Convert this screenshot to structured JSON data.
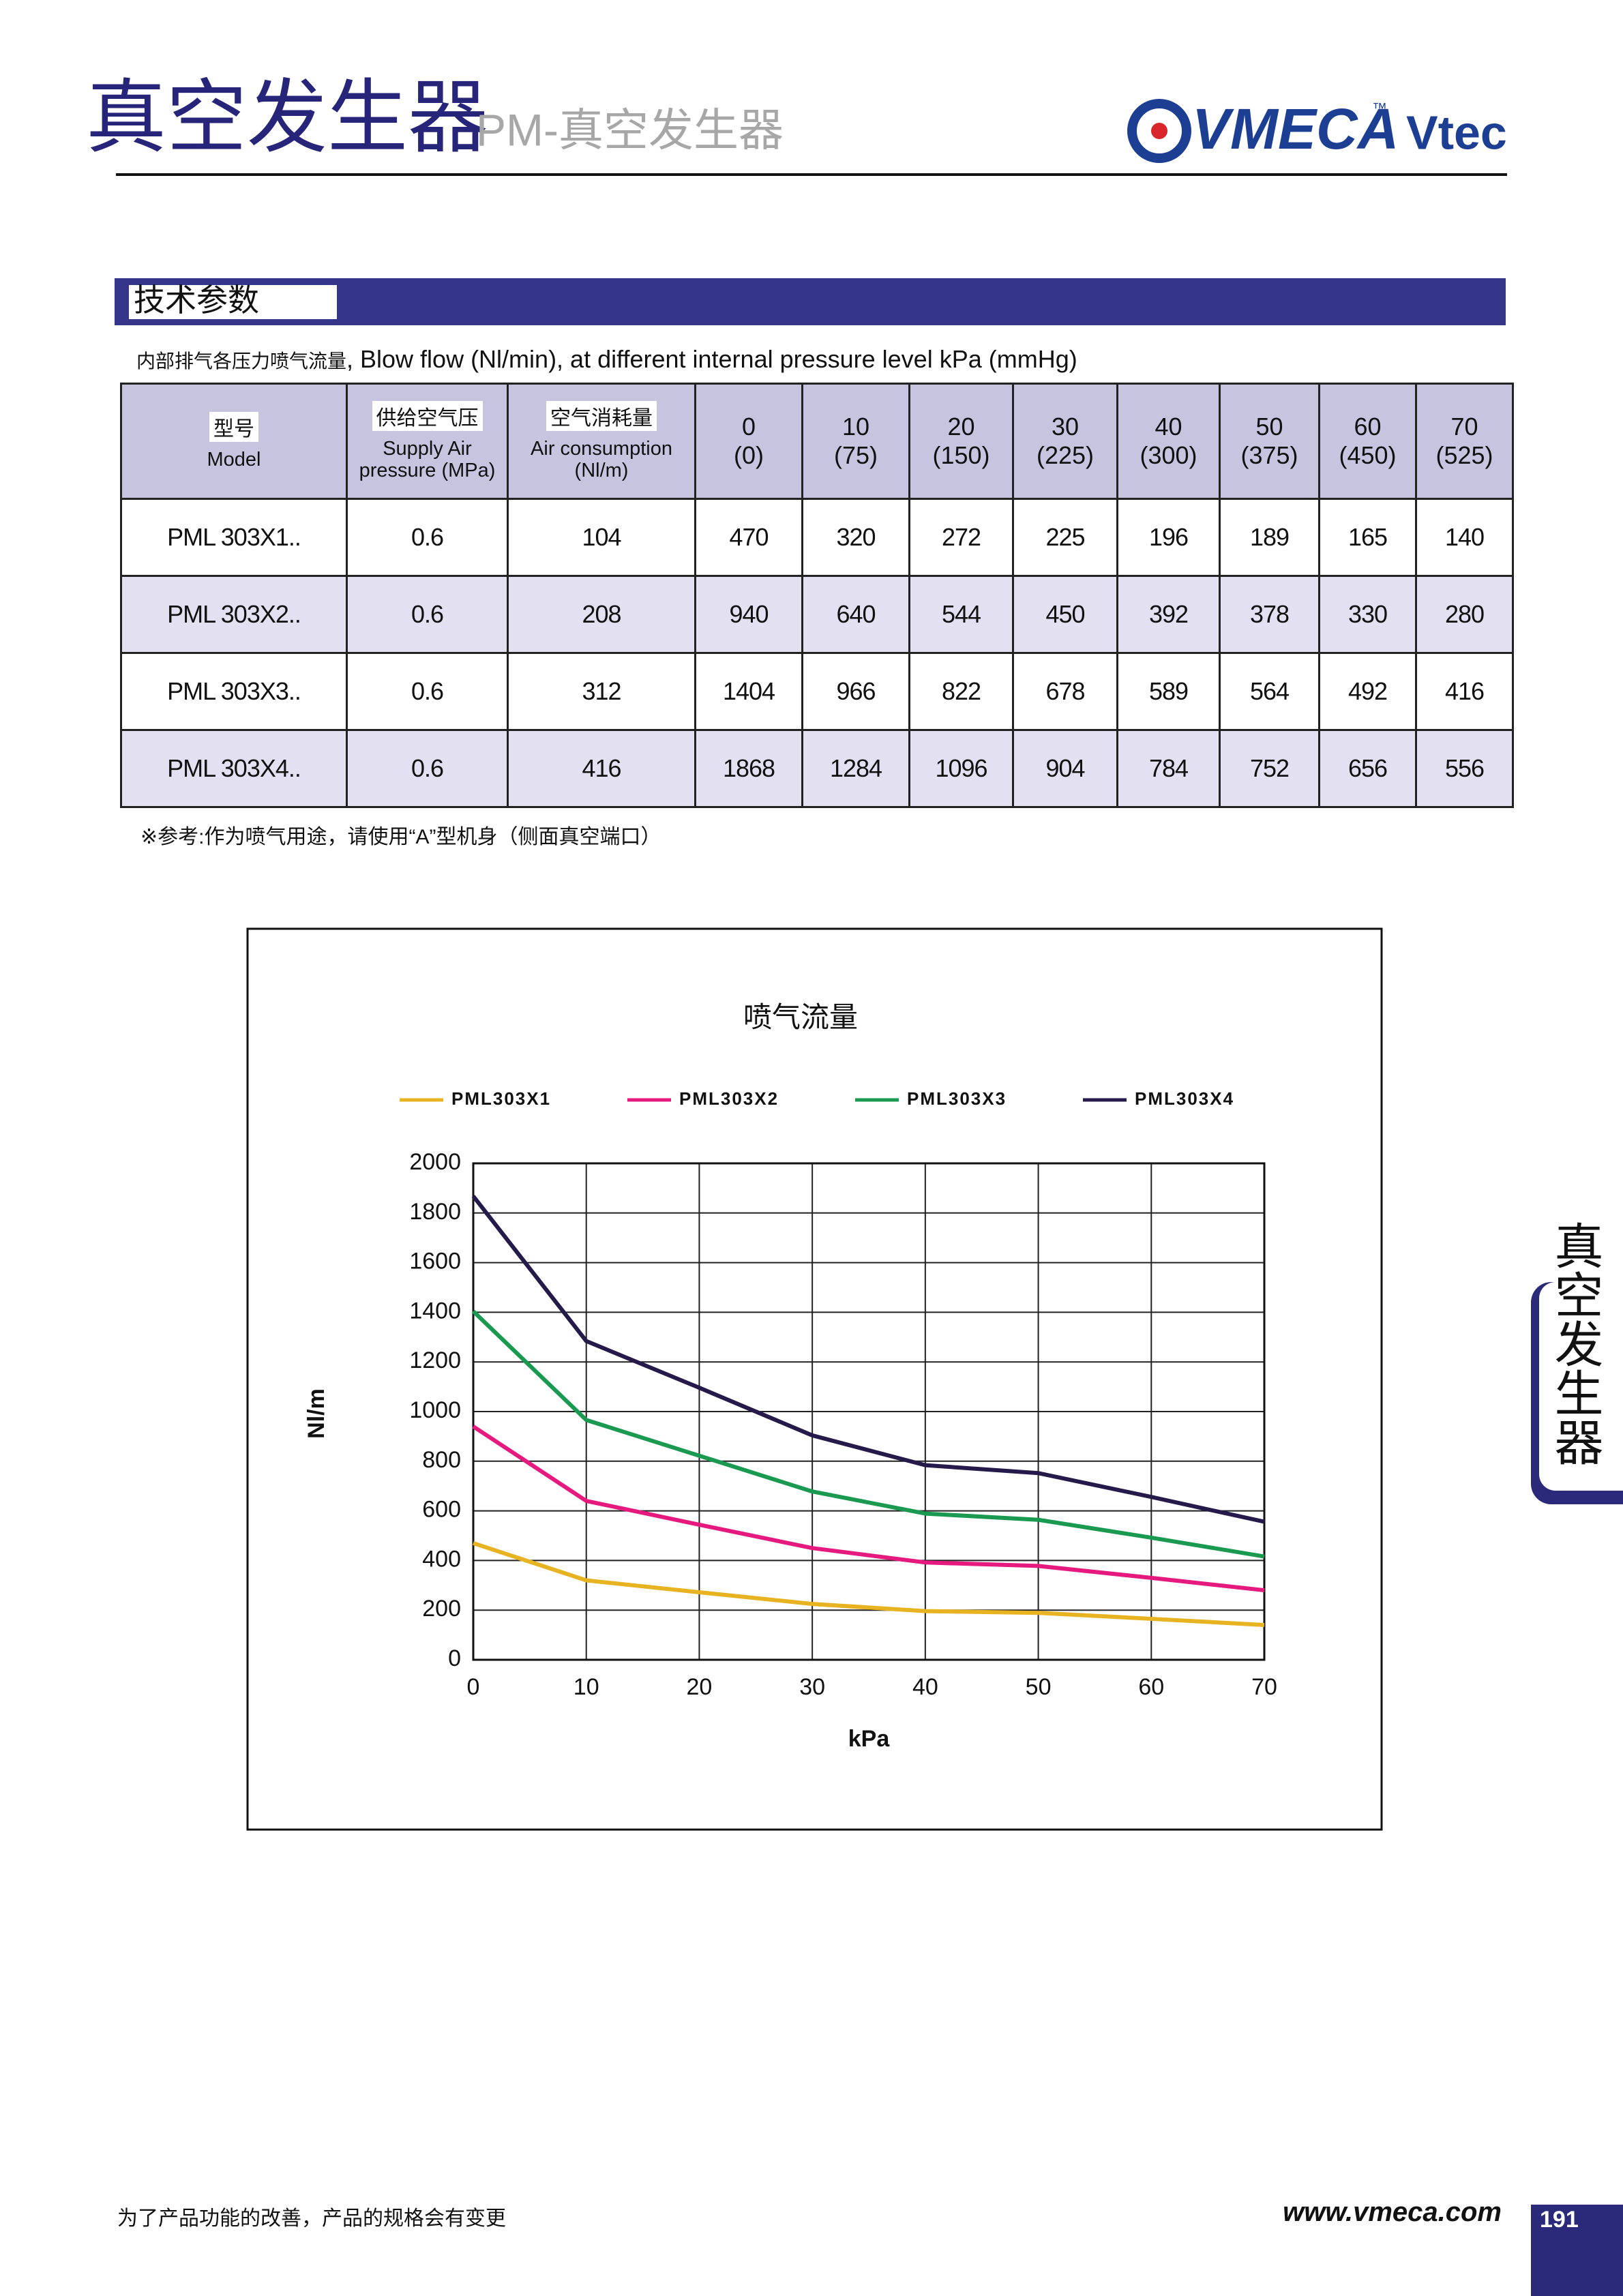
{
  "header": {
    "title": "真空发生器",
    "subtitle": "PM-真空发生器",
    "logo": "VMECA",
    "logo_tm": "™",
    "logo2": "Vtec"
  },
  "section": "技术参数",
  "table": {
    "caption": {
      "cn": "内部排气各压力喷气流量",
      "en": ", Blow flow (Nl/min), at different internal pressure level kPa (mmHg)"
    },
    "header": [
      {
        "cn": "型号",
        "en": "Model"
      },
      {
        "cn": "供给空气压",
        "en": "Supply Air pressure (MPa)"
      },
      {
        "cn": "空气消耗量",
        "en": "Air consumption (Nl/m)"
      }
    ],
    "pressure_columns": [
      {
        "kpa": 0,
        "mmhg": "(0)"
      },
      {
        "kpa": 10,
        "mmhg": "(75)"
      },
      {
        "kpa": 20,
        "mmhg": "(150)"
      },
      {
        "kpa": 30,
        "mmhg": "(225)"
      },
      {
        "kpa": 40,
        "mmhg": "(300)"
      },
      {
        "kpa": 50,
        "mmhg": "(375)"
      },
      {
        "kpa": 60,
        "mmhg": "(450)"
      },
      {
        "kpa": 70,
        "mmhg": "(525)"
      }
    ],
    "rows": [
      [
        "PML 303X1..",
        0.6,
        104,
        470,
        320,
        272,
        225,
        196,
        189,
        165,
        140
      ],
      [
        "PML 303X2..",
        0.6,
        208,
        940,
        640,
        544,
        450,
        392,
        378,
        330,
        280
      ],
      [
        "PML 303X3..",
        0.6,
        312,
        1404,
        966,
        822,
        678,
        589,
        564,
        492,
        416
      ],
      [
        "PML 303X4..",
        0.6,
        416,
        1868,
        1284,
        1096,
        904,
        784,
        752,
        656,
        556
      ]
    ]
  },
  "note": "※参考:作为喷气用途，请使用“A”型机身（侧面真空端口）",
  "chart_data": {
    "type": "line",
    "title": "喷气流量",
    "xlabel": "kPa",
    "ylabel": "Nl/m",
    "x": [
      0,
      10,
      20,
      30,
      40,
      50,
      60,
      70
    ],
    "series": [
      {
        "name": "PML303X1",
        "color": "#e8b320",
        "values": [
          470,
          320,
          272,
          225,
          196,
          189,
          165,
          140
        ]
      },
      {
        "name": "PML303X2",
        "color": "#e6197f",
        "values": [
          940,
          640,
          544,
          450,
          392,
          378,
          330,
          280
        ]
      },
      {
        "name": "PML303X3",
        "color": "#1a9a50",
        "values": [
          1404,
          966,
          822,
          678,
          589,
          564,
          492,
          416
        ]
      },
      {
        "name": "PML303X4",
        "color": "#261a4a",
        "values": [
          1868,
          1284,
          1096,
          904,
          784,
          752,
          656,
          556
        ]
      }
    ],
    "xlim": [
      0,
      70
    ],
    "xticks": [
      0,
      10,
      20,
      30,
      40,
      50,
      60,
      70
    ],
    "ylim": [
      0,
      2000
    ],
    "yticks": [
      0,
      200,
      400,
      600,
      800,
      1000,
      1200,
      1400,
      1600,
      1800,
      2000
    ],
    "grid": true,
    "legend": "top"
  },
  "side_tab": "真空发生器",
  "footer": {
    "disclaimer": "为了产品功能的改善，产品的规格会有变更",
    "website": "www.vmeca.com",
    "page": "191"
  }
}
